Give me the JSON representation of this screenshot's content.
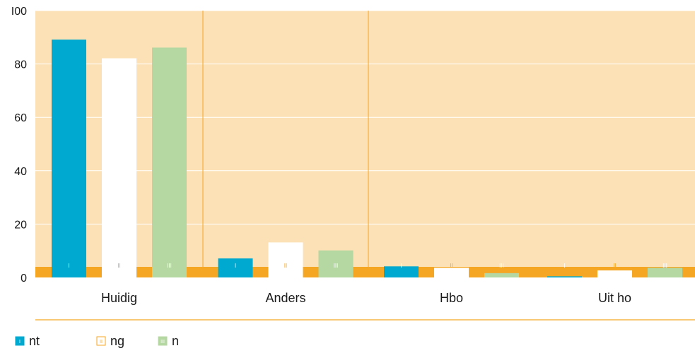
{
  "colors": {
    "plot_bg": "#fce0b6",
    "accent_orange": "#f5a623",
    "gridline": "#ffffff",
    "series_I": "#00a9cf",
    "series_II": "#ffffff",
    "series_III": "#b5d7a2",
    "text": "#1a1a1a"
  },
  "chart_data": {
    "type": "bar",
    "categories": [
      "Huidig",
      "Anders",
      "Hbo",
      "Uit ho"
    ],
    "series": [
      {
        "name": "nt",
        "roman": "I",
        "values": [
          89,
          7,
          4,
          0.3
        ]
      },
      {
        "name": "ng",
        "roman": "II",
        "values": [
          82,
          13,
          3.5,
          2.5
        ]
      },
      {
        "name": "n",
        "roman": "III",
        "values": [
          86,
          10,
          1.5,
          3.5
        ]
      }
    ],
    "ylim": [
      0,
      100
    ],
    "yticks": [
      "0",
      "20",
      "40",
      "60",
      "80",
      "I00"
    ],
    "ytick_values": [
      0,
      20,
      40,
      60,
      80,
      100
    ],
    "grid": true,
    "legend_position": "bottom-left",
    "title": "",
    "xlabel": "",
    "ylabel": ""
  }
}
